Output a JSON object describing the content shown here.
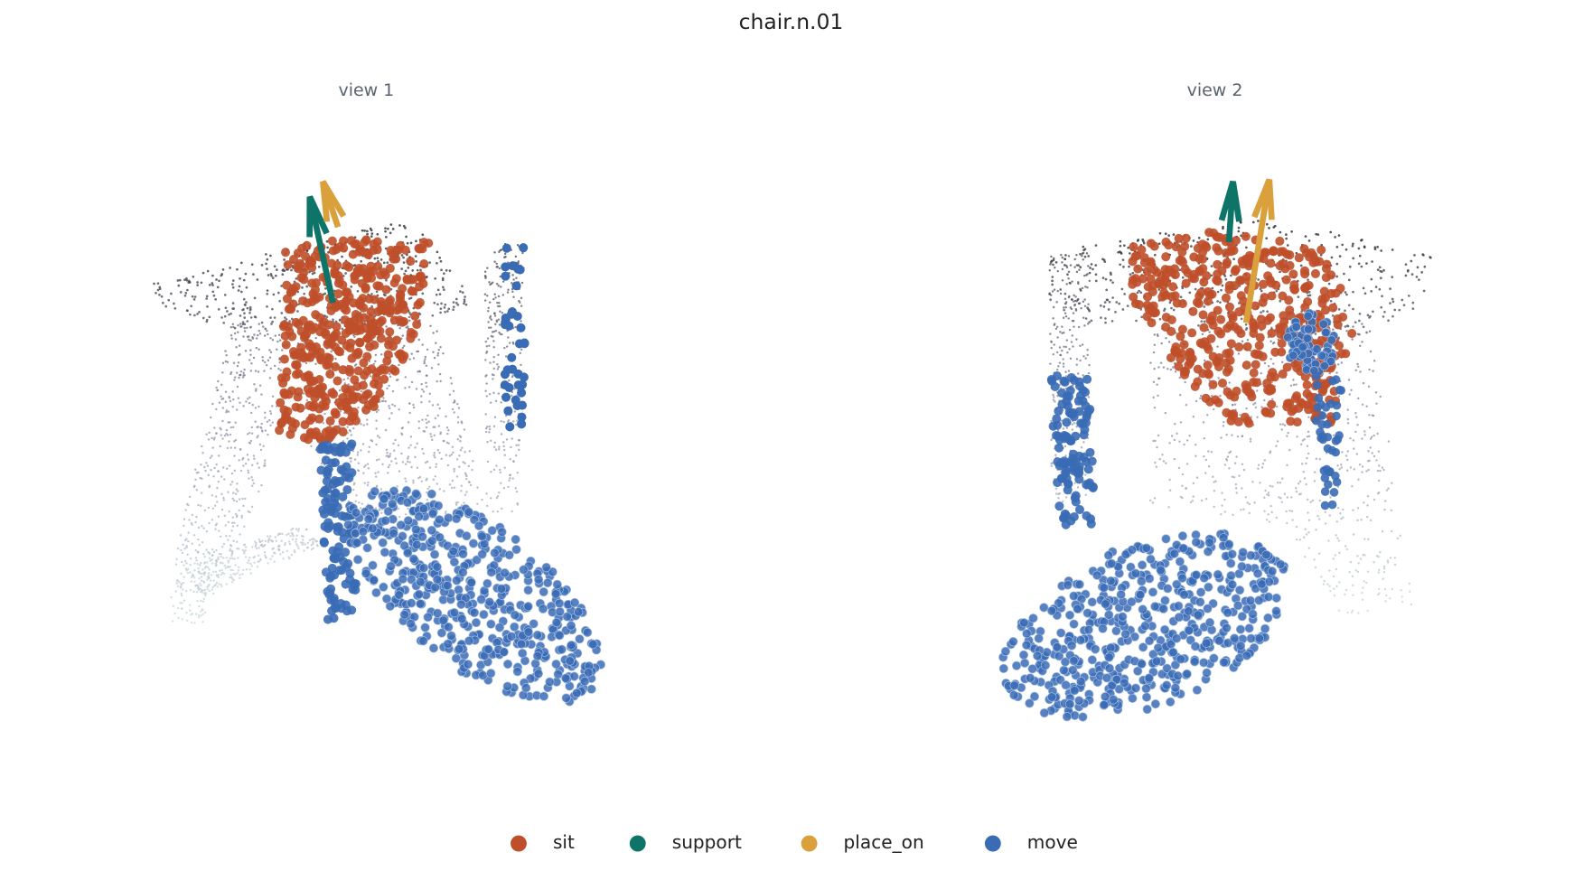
{
  "title": "chair.n.01",
  "views": [
    {
      "title": "view 1"
    },
    {
      "title": "view 2"
    }
  ],
  "legend": [
    {
      "label": "sit",
      "color": "#bf4f2a"
    },
    {
      "label": "support",
      "color": "#0e7468"
    },
    {
      "label": "place_on",
      "color": "#d9a03c"
    },
    {
      "label": "move",
      "color": "#3a6bb5"
    }
  ]
}
